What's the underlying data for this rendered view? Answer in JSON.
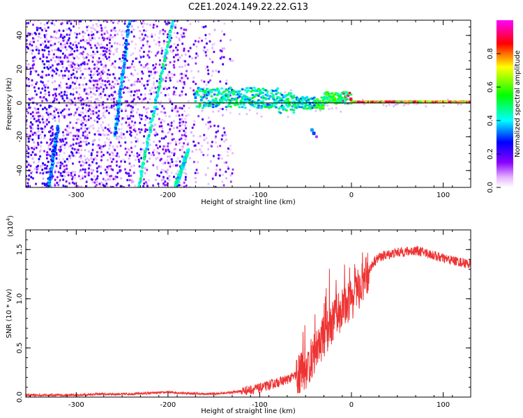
{
  "title": "C2E1.2024.149.22.22.G13",
  "chart_data": [
    {
      "type": "heatmap",
      "xlabel": "Height of straight line (km)",
      "ylabel": "Frequency (Hz)",
      "xlim": [
        -355,
        130
      ],
      "ylim": [
        -50,
        49
      ],
      "xticks": [
        -300,
        -200,
        -100,
        0,
        100
      ],
      "yticks": [
        -40,
        -20,
        0,
        20,
        40
      ],
      "colorbar": {
        "label": "Normalized spectral amplitude",
        "range": [
          0.0,
          1.0
        ],
        "ticks": [
          "0.0",
          "0.2",
          "0.4",
          "0.6",
          "0.8"
        ],
        "colors": [
          "#ffffff",
          "#e6b3ff",
          "#8800ff",
          "#0000ff",
          "#00ffff",
          "#00ff00",
          "#ffff00",
          "#ff0000",
          "#ff00ff"
        ]
      },
      "zero_line_color": "#000000"
    },
    {
      "type": "line",
      "xlabel": "Height of straight line (km)",
      "ylabel": "SNR (10 * v/v)",
      "yscale_label": "(x10",
      "yscale_exp": "4",
      "yscale_close": ")",
      "xlim": [
        -355,
        130
      ],
      "ylim": [
        0.0,
        1.7
      ],
      "xticks": [
        -300,
        -200,
        -100,
        0,
        100
      ],
      "yticks": [
        "0.0",
        "0.5",
        "1.0",
        "1.5"
      ],
      "color": "#ee3333",
      "series": [
        {
          "x": [
            -355,
            -330,
            -300,
            -280,
            -250,
            -220,
            -200,
            -180,
            -160,
            -140,
            -120,
            -100,
            -90,
            -80,
            -70,
            -60,
            -50,
            -45,
            -40,
            -35,
            -30,
            -25,
            -20,
            -15,
            -10,
            -5,
            0,
            5,
            10,
            15,
            20,
            25,
            30,
            40,
            50,
            60,
            70,
            80,
            90,
            100,
            110,
            120,
            130
          ],
          "y": [
            0.02,
            0.02,
            0.02,
            0.03,
            0.03,
            0.04,
            0.05,
            0.04,
            0.03,
            0.04,
            0.06,
            0.09,
            0.12,
            0.15,
            0.18,
            0.22,
            0.28,
            0.35,
            0.45,
            0.55,
            0.62,
            0.7,
            0.78,
            0.85,
            0.9,
            0.95,
            1.0,
            1.05,
            1.12,
            1.2,
            1.3,
            1.38,
            1.42,
            1.45,
            1.47,
            1.48,
            1.49,
            1.47,
            1.44,
            1.41,
            1.39,
            1.37,
            1.35
          ]
        }
      ]
    }
  ]
}
